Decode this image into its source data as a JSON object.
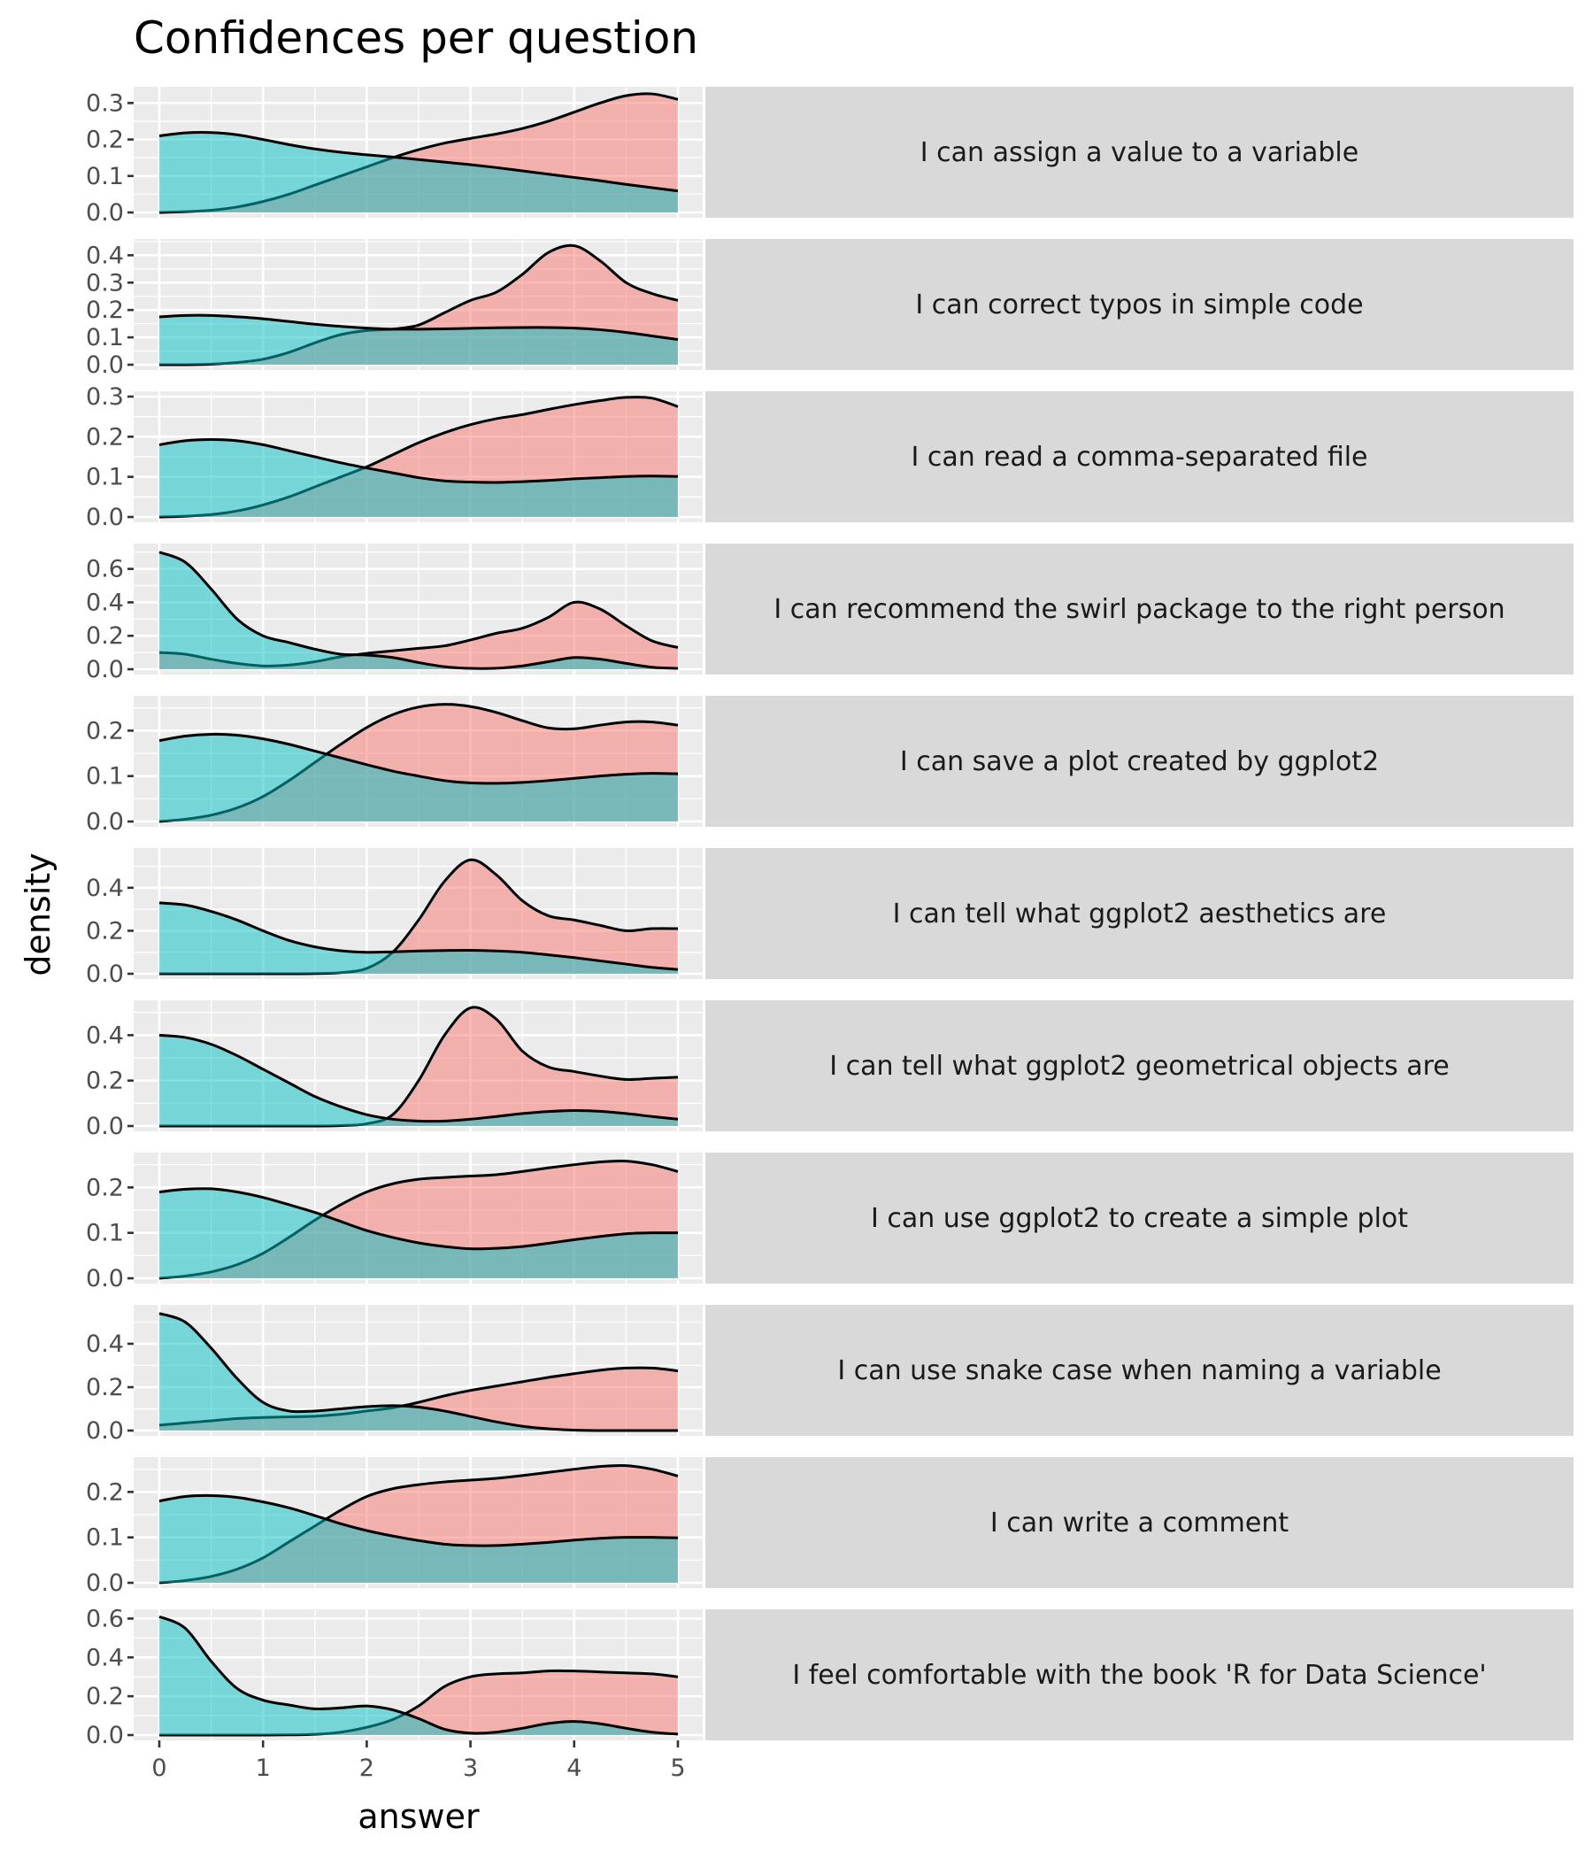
{
  "chart_data": {
    "type": "area",
    "subtype": "faceted density plot",
    "title": "Confidences per question",
    "xlabel": "answer",
    "ylabel": "density",
    "x_ticks": [
      0,
      1,
      2,
      3,
      4,
      5
    ],
    "xlim": [
      0,
      5
    ],
    "grid": true,
    "legend": "none",
    "series_colors": {
      "red": "#F8766D",
      "teal": "#00BFC4"
    },
    "x": [
      0,
      0.25,
      0.5,
      0.75,
      1,
      1.25,
      1.5,
      1.75,
      2,
      2.25,
      2.5,
      2.75,
      3,
      3.25,
      3.5,
      3.75,
      4,
      4.25,
      4.5,
      4.75,
      5
    ],
    "panels": [
      {
        "label": "I can assign a value to a variable",
        "ylim": [
          0,
          0.33
        ],
        "y_ticks": [
          "0.0",
          "0.1",
          "0.2",
          "0.3"
        ],
        "y_tick_values": [
          0,
          0.1,
          0.2,
          0.3
        ],
        "series": [
          {
            "name": "red",
            "values": [
              0.0,
              0.002,
              0.006,
              0.015,
              0.03,
              0.05,
              0.075,
              0.1,
              0.125,
              0.15,
              0.172,
              0.19,
              0.203,
              0.215,
              0.23,
              0.25,
              0.275,
              0.3,
              0.32,
              0.325,
              0.31
            ]
          },
          {
            "name": "teal",
            "values": [
              0.21,
              0.218,
              0.219,
              0.213,
              0.2,
              0.186,
              0.174,
              0.165,
              0.158,
              0.152,
              0.145,
              0.138,
              0.131,
              0.123,
              0.114,
              0.105,
              0.096,
              0.087,
              0.077,
              0.068,
              0.059
            ]
          }
        ]
      },
      {
        "label": "I can correct typos in simple code",
        "ylim": [
          0,
          0.44
        ],
        "y_ticks": [
          "0.0",
          "0.1",
          "0.2",
          "0.3",
          "0.4"
        ],
        "y_tick_values": [
          0,
          0.1,
          0.2,
          0.3,
          0.4
        ],
        "series": [
          {
            "name": "red",
            "values": [
              0.0,
              0.0,
              0.002,
              0.008,
              0.02,
              0.045,
              0.08,
              0.11,
              0.125,
              0.13,
              0.145,
              0.19,
              0.235,
              0.265,
              0.33,
              0.41,
              0.435,
              0.38,
              0.3,
              0.26,
              0.235
            ]
          },
          {
            "name": "teal",
            "values": [
              0.175,
              0.18,
              0.18,
              0.175,
              0.168,
              0.158,
              0.148,
              0.14,
              0.134,
              0.13,
              0.13,
              0.131,
              0.133,
              0.135,
              0.136,
              0.136,
              0.134,
              0.128,
              0.118,
              0.105,
              0.092
            ]
          }
        ]
      },
      {
        "label": "I can read a comma-separated file",
        "ylim": [
          0,
          0.3
        ],
        "y_ticks": [
          "0.0",
          "0.1",
          "0.2",
          "0.3"
        ],
        "y_tick_values": [
          0,
          0.1,
          0.2,
          0.3
        ],
        "series": [
          {
            "name": "red",
            "values": [
              0.0,
              0.002,
              0.006,
              0.015,
              0.03,
              0.05,
              0.075,
              0.1,
              0.125,
              0.155,
              0.185,
              0.21,
              0.23,
              0.245,
              0.255,
              0.268,
              0.28,
              0.29,
              0.298,
              0.296,
              0.275
            ]
          },
          {
            "name": "teal",
            "values": [
              0.18,
              0.19,
              0.193,
              0.19,
              0.18,
              0.165,
              0.15,
              0.135,
              0.122,
              0.11,
              0.098,
              0.09,
              0.087,
              0.086,
              0.088,
              0.091,
              0.095,
              0.098,
              0.101,
              0.102,
              0.101
            ]
          }
        ]
      },
      {
        "label": "I can recommend the swirl package to the right person",
        "ylim": [
          0,
          0.72
        ],
        "y_ticks": [
          "0.0",
          "0.2",
          "0.4",
          "0.6"
        ],
        "y_tick_values": [
          0,
          0.2,
          0.4,
          0.6
        ],
        "series": [
          {
            "name": "red",
            "values": [
              0.1,
              0.09,
              0.06,
              0.035,
              0.02,
              0.025,
              0.045,
              0.075,
              0.095,
              0.11,
              0.125,
              0.14,
              0.175,
              0.215,
              0.245,
              0.31,
              0.4,
              0.36,
              0.26,
              0.17,
              0.13
            ]
          },
          {
            "name": "teal",
            "values": [
              0.7,
              0.64,
              0.48,
              0.3,
              0.2,
              0.16,
              0.12,
              0.09,
              0.085,
              0.07,
              0.04,
              0.015,
              0.005,
              0.006,
              0.02,
              0.045,
              0.07,
              0.06,
              0.035,
              0.012,
              0.005
            ]
          }
        ]
      },
      {
        "label": "I can save a plot created by ggplot2",
        "ylim": [
          0,
          0.265
        ],
        "y_ticks": [
          "0.0",
          "0.1",
          "0.2"
        ],
        "y_tick_values": [
          0,
          0.1,
          0.2
        ],
        "series": [
          {
            "name": "red",
            "values": [
              0.0,
              0.005,
              0.014,
              0.03,
              0.055,
              0.09,
              0.13,
              0.17,
              0.207,
              0.235,
              0.252,
              0.258,
              0.253,
              0.24,
              0.222,
              0.206,
              0.204,
              0.212,
              0.219,
              0.219,
              0.212
            ]
          },
          {
            "name": "teal",
            "values": [
              0.178,
              0.188,
              0.192,
              0.19,
              0.182,
              0.17,
              0.155,
              0.14,
              0.125,
              0.111,
              0.1,
              0.09,
              0.085,
              0.084,
              0.086,
              0.09,
              0.095,
              0.1,
              0.104,
              0.106,
              0.105
            ]
          }
        ]
      },
      {
        "label": "I can tell what ggplot2 aesthetics are",
        "ylim": [
          0,
          0.56
        ],
        "y_ticks": [
          "0.0",
          "0.2",
          "0.4"
        ],
        "y_tick_values": [
          0,
          0.2,
          0.4
        ],
        "series": [
          {
            "name": "red",
            "values": [
              0.0,
              0.0,
              0.0,
              0.0,
              0.0,
              0.0,
              0.001,
              0.005,
              0.025,
              0.1,
              0.25,
              0.43,
              0.53,
              0.46,
              0.34,
              0.27,
              0.25,
              0.225,
              0.2,
              0.21,
              0.21
            ]
          },
          {
            "name": "teal",
            "values": [
              0.33,
              0.32,
              0.29,
              0.25,
              0.2,
              0.155,
              0.125,
              0.107,
              0.1,
              0.102,
              0.106,
              0.108,
              0.109,
              0.106,
              0.1,
              0.088,
              0.075,
              0.06,
              0.045,
              0.03,
              0.02
            ]
          }
        ]
      },
      {
        "label": "I can tell what ggplot2 geometrical objects are",
        "ylim": [
          0,
          0.53
        ],
        "y_ticks": [
          "0.0",
          "0.2",
          "0.4"
        ],
        "y_tick_values": [
          0,
          0.2,
          0.4
        ],
        "series": [
          {
            "name": "red",
            "values": [
              0.0,
              0.0,
              0.0,
              0.0,
              0.0,
              0.0,
              0.0,
              0.002,
              0.01,
              0.05,
              0.2,
              0.4,
              0.52,
              0.47,
              0.33,
              0.26,
              0.24,
              0.22,
              0.205,
              0.21,
              0.215
            ]
          },
          {
            "name": "teal",
            "values": [
              0.4,
              0.39,
              0.36,
              0.31,
              0.25,
              0.19,
              0.13,
              0.085,
              0.05,
              0.03,
              0.022,
              0.022,
              0.03,
              0.042,
              0.055,
              0.064,
              0.068,
              0.065,
              0.055,
              0.042,
              0.03
            ]
          }
        ]
      },
      {
        "label": "I can use ggplot2 to create a simple plot",
        "ylim": [
          0,
          0.265
        ],
        "y_ticks": [
          "0.0",
          "0.1",
          "0.2"
        ],
        "y_tick_values": [
          0,
          0.1,
          0.2
        ],
        "series": [
          {
            "name": "red",
            "values": [
              0.0,
              0.005,
              0.014,
              0.03,
              0.055,
              0.09,
              0.128,
              0.162,
              0.19,
              0.208,
              0.218,
              0.222,
              0.225,
              0.228,
              0.235,
              0.243,
              0.25,
              0.256,
              0.258,
              0.25,
              0.235
            ]
          },
          {
            "name": "teal",
            "values": [
              0.19,
              0.196,
              0.197,
              0.19,
              0.178,
              0.162,
              0.145,
              0.125,
              0.105,
              0.09,
              0.078,
              0.07,
              0.065,
              0.066,
              0.07,
              0.077,
              0.085,
              0.092,
              0.098,
              0.1,
              0.1
            ]
          }
        ]
      },
      {
        "label": "I can use snake case when naming a variable",
        "ylim": [
          0,
          0.555
        ],
        "y_ticks": [
          "0.0",
          "0.2",
          "0.4"
        ],
        "y_tick_values": [
          0,
          0.2,
          0.4
        ],
        "series": [
          {
            "name": "red",
            "values": [
              0.025,
              0.035,
              0.045,
              0.055,
              0.06,
              0.063,
              0.066,
              0.075,
              0.09,
              0.105,
              0.13,
              0.16,
              0.185,
              0.205,
              0.225,
              0.245,
              0.262,
              0.278,
              0.288,
              0.288,
              0.275
            ]
          },
          {
            "name": "teal",
            "values": [
              0.54,
              0.5,
              0.38,
              0.24,
              0.13,
              0.09,
              0.09,
              0.1,
              0.11,
              0.115,
              0.108,
              0.09,
              0.065,
              0.04,
              0.02,
              0.008,
              0.002,
              0.0,
              0.0,
              0.0,
              0.0
            ]
          }
        ]
      },
      {
        "label": "I can write a comment",
        "ylim": [
          0,
          0.265
        ],
        "y_ticks": [
          "0.0",
          "0.1",
          "0.2"
        ],
        "y_tick_values": [
          0,
          0.1,
          0.2
        ],
        "series": [
          {
            "name": "red",
            "values": [
              0.0,
              0.005,
              0.014,
              0.03,
              0.055,
              0.09,
              0.125,
              0.16,
              0.19,
              0.207,
              0.216,
              0.222,
              0.226,
              0.23,
              0.236,
              0.243,
              0.25,
              0.256,
              0.258,
              0.25,
              0.235
            ]
          },
          {
            "name": "teal",
            "values": [
              0.18,
              0.19,
              0.192,
              0.188,
              0.178,
              0.165,
              0.148,
              0.13,
              0.115,
              0.103,
              0.093,
              0.085,
              0.082,
              0.082,
              0.085,
              0.089,
              0.094,
              0.098,
              0.1,
              0.1,
              0.099
            ]
          }
        ]
      },
      {
        "label": "I feel comfortable with the book 'R for Data Science'",
        "ylim": [
          0,
          0.62
        ],
        "y_ticks": [
          "0.0",
          "0.2",
          "0.4",
          "0.6"
        ],
        "y_tick_values": [
          0,
          0.2,
          0.4,
          0.6
        ],
        "series": [
          {
            "name": "red",
            "values": [
              0.0,
              0.0,
              0.0,
              0.0,
              0.0,
              0.001,
              0.004,
              0.015,
              0.04,
              0.08,
              0.15,
              0.25,
              0.3,
              0.315,
              0.32,
              0.33,
              0.33,
              0.325,
              0.32,
              0.315,
              0.3
            ]
          },
          {
            "name": "teal",
            "values": [
              0.61,
              0.55,
              0.38,
              0.24,
              0.18,
              0.155,
              0.135,
              0.14,
              0.15,
              0.13,
              0.085,
              0.03,
              0.01,
              0.015,
              0.035,
              0.06,
              0.07,
              0.058,
              0.035,
              0.015,
              0.005
            ]
          }
        ]
      }
    ]
  }
}
